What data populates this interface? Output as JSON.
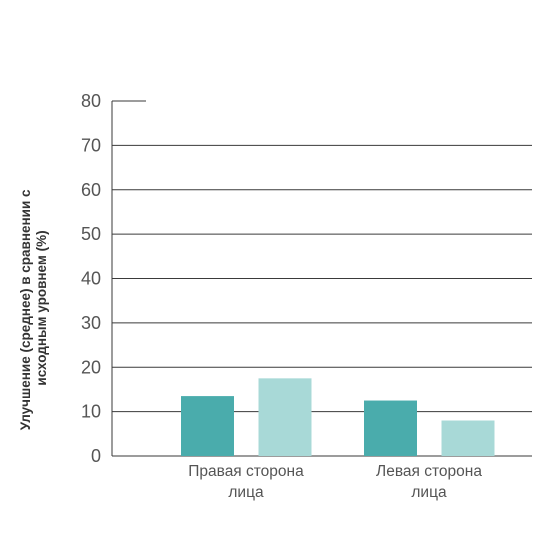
{
  "chart_data": {
    "type": "bar",
    "ylabel_lines": [
      "Улучшение (среднее) в сравнении с",
      "исходным уровнем (%)"
    ],
    "ylim": [
      0,
      80
    ],
    "yticks": [
      0,
      10,
      20,
      30,
      40,
      50,
      60,
      70,
      80
    ],
    "grid": true,
    "categories": [
      {
        "label_lines": [
          "Правая сторона",
          "лица"
        ]
      },
      {
        "label_lines": [
          "Левая сторона",
          "лица"
        ]
      }
    ],
    "series": [
      {
        "color": "#4aacac",
        "values": [
          13.5,
          12.5
        ]
      },
      {
        "color": "#a8d9d7",
        "values": [
          17.5,
          8
        ]
      }
    ]
  }
}
